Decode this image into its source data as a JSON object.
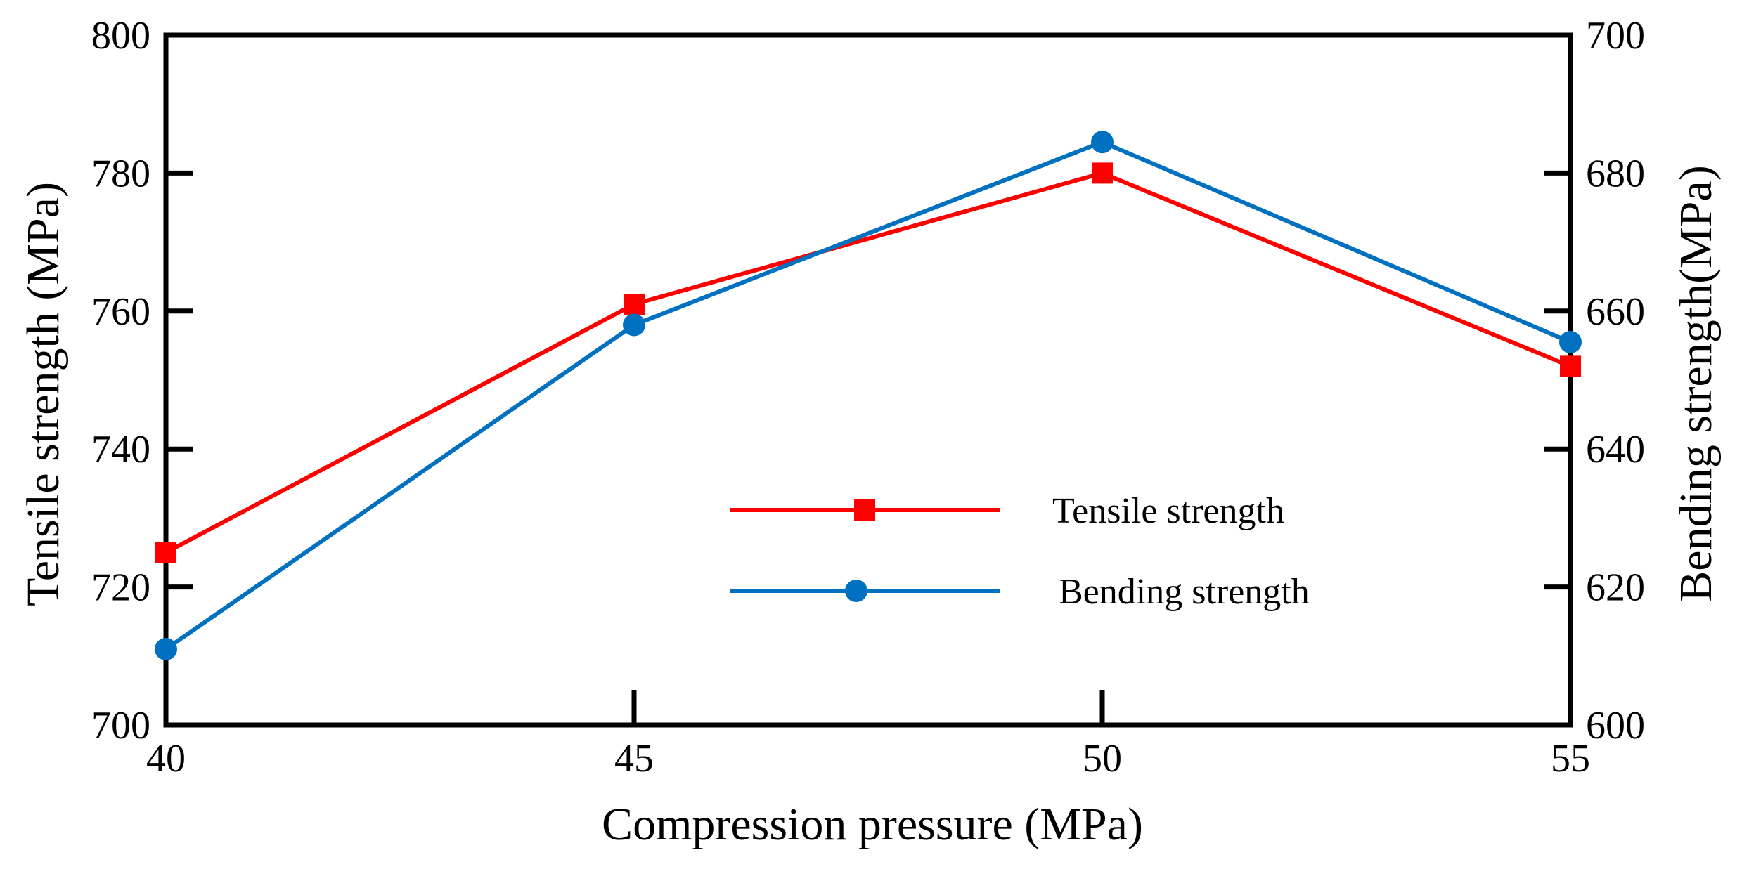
{
  "chart_data": {
    "type": "line",
    "x": [
      40,
      45,
      50,
      55
    ],
    "xlabel": "Compression pressure (MPa)",
    "ylabel": "Tensile strength (MPa)",
    "y2label": "Bending strength(MPa)",
    "xlim": [
      40,
      55
    ],
    "ylim": [
      700,
      800
    ],
    "y2lim": [
      600,
      700
    ],
    "xticks": [
      "40",
      "45",
      "50",
      "55"
    ],
    "yticks": [
      "700",
      "720",
      "740",
      "760",
      "780",
      "800"
    ],
    "y2ticks": [
      "600",
      "620",
      "640",
      "660",
      "680",
      "700"
    ],
    "grid": false,
    "legend_position": "center-right",
    "series": [
      {
        "name": "Tensile strength",
        "axis": "left",
        "values": [
          725,
          761,
          780,
          752
        ],
        "color": "#ff0000",
        "marker": "square"
      },
      {
        "name": "Bending strength",
        "axis": "right",
        "values": [
          611,
          658,
          684.5,
          655.5
        ],
        "color": "#0070c0",
        "marker": "circle"
      }
    ]
  }
}
